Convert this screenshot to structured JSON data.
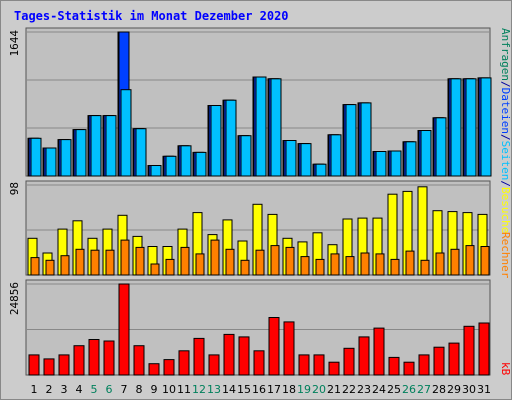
{
  "title": "Tages-Statistik im Monat Dezember 2020",
  "right_labels": {
    "top": [
      {
        "text": "Anfragen",
        "color": "#00805c"
      },
      {
        "text": "/",
        "color": "#0000a0"
      },
      {
        "text": "Dateien",
        "color": "#0040ff"
      },
      {
        "text": "/",
        "color": "#0000a0"
      },
      {
        "text": "Seiten",
        "color": "#00c0ff"
      },
      {
        "text": "/",
        "color": "#0000a0"
      },
      {
        "text": "Besuche",
        "color": "#ffff00"
      }
    ],
    "middle": [
      {
        "text": "Rechner",
        "color": "#ff8000"
      }
    ],
    "bottom": [
      {
        "text": "kB",
        "color": "#ff0000"
      }
    ]
  },
  "colors": {
    "hits": "#00805c",
    "files": "#0040ff",
    "pages": "#00c0ff",
    "visits": "#ffff00",
    "sites": "#ff8000",
    "kbytes": "#ff0000",
    "weekday_label": "#000000",
    "weekend_label": "#00805c",
    "plot_bg": "#c0c0c0",
    "title": "#0000ff"
  },
  "chart_data": [
    {
      "type": "bar",
      "panel": "top",
      "y_max_label": "1644",
      "ylim": [
        0,
        1644
      ],
      "categories": [
        "1",
        "2",
        "3",
        "4",
        "5",
        "6",
        "7",
        "8",
        "9",
        "10",
        "11",
        "12",
        "13",
        "14",
        "15",
        "16",
        "17",
        "18",
        "19",
        "20",
        "21",
        "22",
        "23",
        "24",
        "25",
        "26",
        "27",
        "28",
        "29",
        "30",
        "31"
      ],
      "series": [
        {
          "name": "Anfragen",
          "values": [
            430,
            320,
            415,
            530,
            690,
            690,
            1644,
            540,
            120,
            225,
            345,
            270,
            805,
            865,
            460,
            1130,
            1110,
            405,
            370,
            135,
            470,
            815,
            835,
            280,
            285,
            390,
            520,
            665,
            1110,
            1110,
            1120
          ]
        },
        {
          "name": "Dateien",
          "values": [
            430,
            320,
            415,
            530,
            690,
            690,
            1644,
            540,
            120,
            225,
            345,
            270,
            805,
            865,
            460,
            1130,
            1110,
            405,
            370,
            135,
            470,
            815,
            835,
            280,
            285,
            390,
            520,
            665,
            1110,
            1110,
            1120
          ]
        },
        {
          "name": "Seiten",
          "values": [
            430,
            320,
            415,
            530,
            690,
            690,
            985,
            540,
            120,
            225,
            345,
            270,
            805,
            865,
            460,
            1130,
            1110,
            405,
            370,
            135,
            470,
            815,
            835,
            280,
            285,
            390,
            520,
            665,
            1110,
            1110,
            1120
          ]
        }
      ]
    },
    {
      "type": "bar",
      "panel": "middle",
      "y_max_label": "98",
      "ylim": [
        0,
        98
      ],
      "categories": [
        "1",
        "2",
        "3",
        "4",
        "5",
        "6",
        "7",
        "8",
        "9",
        "10",
        "11",
        "12",
        "13",
        "14",
        "15",
        "16",
        "17",
        "18",
        "19",
        "20",
        "21",
        "22",
        "23",
        "24",
        "25",
        "26",
        "27",
        "28",
        "29",
        "30",
        "31"
      ],
      "series": [
        {
          "name": "Besuche",
          "values": [
            40,
            24,
            50,
            59,
            40,
            50,
            65,
            42,
            31,
            31,
            50,
            68,
            44,
            60,
            37,
            77,
            66,
            40,
            36,
            46,
            33,
            61,
            62,
            62,
            88,
            91,
            96,
            70,
            69,
            68,
            66
          ]
        },
        {
          "name": "Rechner",
          "values": [
            19,
            16,
            21,
            28,
            27,
            27,
            38,
            30,
            12,
            17,
            30,
            23,
            38,
            28,
            16,
            27,
            32,
            30,
            20,
            17,
            23,
            20,
            24,
            23,
            17,
            26,
            16,
            24,
            28,
            32,
            31
          ]
        }
      ]
    },
    {
      "type": "bar",
      "panel": "bottom",
      "y_max_label": "24856",
      "ylim": [
        0,
        24856
      ],
      "categories": [
        "1",
        "2",
        "3",
        "4",
        "5",
        "6",
        "7",
        "8",
        "9",
        "10",
        "11",
        "12",
        "13",
        "14",
        "15",
        "16",
        "17",
        "18",
        "19",
        "20",
        "21",
        "22",
        "23",
        "24",
        "25",
        "26",
        "27",
        "28",
        "29",
        "30",
        "31"
      ],
      "series": [
        {
          "name": "kB",
          "values": [
            5500,
            4400,
            5500,
            8000,
            9700,
            9300,
            24856,
            8000,
            3100,
            4200,
            6600,
            10000,
            5500,
            11100,
            10400,
            6600,
            15700,
            14500,
            5500,
            5500,
            3500,
            7300,
            10400,
            12800,
            4800,
            3500,
            5500,
            7600,
            8700,
            13300,
            14200
          ]
        }
      ]
    }
  ],
  "x_labels": [
    {
      "text": "1",
      "weekend": false
    },
    {
      "text": "2",
      "weekend": false
    },
    {
      "text": "3",
      "weekend": false
    },
    {
      "text": "4",
      "weekend": false
    },
    {
      "text": "5",
      "weekend": true
    },
    {
      "text": "6",
      "weekend": true
    },
    {
      "text": "7",
      "weekend": false
    },
    {
      "text": "8",
      "weekend": false
    },
    {
      "text": "9",
      "weekend": false
    },
    {
      "text": "10",
      "weekend": false
    },
    {
      "text": "11",
      "weekend": false
    },
    {
      "text": "12",
      "weekend": true
    },
    {
      "text": "13",
      "weekend": true
    },
    {
      "text": "14",
      "weekend": false
    },
    {
      "text": "15",
      "weekend": false
    },
    {
      "text": "16",
      "weekend": false
    },
    {
      "text": "17",
      "weekend": false
    },
    {
      "text": "18",
      "weekend": false
    },
    {
      "text": "19",
      "weekend": true
    },
    {
      "text": "20",
      "weekend": true
    },
    {
      "text": "21",
      "weekend": false
    },
    {
      "text": "22",
      "weekend": false
    },
    {
      "text": "23",
      "weekend": false
    },
    {
      "text": "24",
      "weekend": false
    },
    {
      "text": "25",
      "weekend": false
    },
    {
      "text": "26",
      "weekend": true
    },
    {
      "text": "27",
      "weekend": true
    },
    {
      "text": "28",
      "weekend": false
    },
    {
      "text": "29",
      "weekend": false
    },
    {
      "text": "30",
      "weekend": false
    },
    {
      "text": "31",
      "weekend": false
    }
  ]
}
